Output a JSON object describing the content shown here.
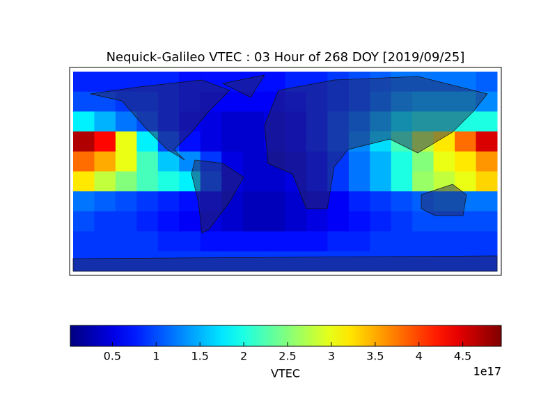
{
  "chart_data": {
    "type": "heatmap",
    "title": "Nequick-Galileo VTEC : 03 Hour of 268 DOY [2019/09/25]",
    "z": [
      [
        0.8,
        0.8,
        0.8,
        0.8,
        0.8,
        0.7,
        0.7,
        0.7,
        0.7,
        0.7,
        0.8,
        0.8,
        0.9,
        1.0,
        1.1,
        1.2,
        1.2,
        1.2,
        1.2,
        1.1
      ],
      [
        1.0,
        1.0,
        0.9,
        0.9,
        0.8,
        0.7,
        0.6,
        0.6,
        0.6,
        0.6,
        0.7,
        0.8,
        0.9,
        1.0,
        1.2,
        1.4,
        1.5,
        1.5,
        1.5,
        1.3
      ],
      [
        1.8,
        1.5,
        1.2,
        1.0,
        0.8,
        0.6,
        0.5,
        0.4,
        0.4,
        0.5,
        0.6,
        0.8,
        1.0,
        1.2,
        1.5,
        1.8,
        2.0,
        2.0,
        2.0,
        2.0
      ],
      [
        4.7,
        4.3,
        3.0,
        1.8,
        1.0,
        0.7,
        0.5,
        0.4,
        0.4,
        0.5,
        0.6,
        0.8,
        1.0,
        1.3,
        1.7,
        2.2,
        2.8,
        3.2,
        3.8,
        4.5
      ],
      [
        3.8,
        3.5,
        3.0,
        2.2,
        1.6,
        1.3,
        0.9,
        0.5,
        0.4,
        0.4,
        0.5,
        0.7,
        0.9,
        1.2,
        1.5,
        2.0,
        2.5,
        3.0,
        3.2,
        3.6
      ],
      [
        3.2,
        2.8,
        2.5,
        2.2,
        2.0,
        1.8,
        1.0,
        0.5,
        0.4,
        0.4,
        0.5,
        0.7,
        0.9,
        1.2,
        1.5,
        2.0,
        2.6,
        2.8,
        3.0,
        3.3
      ],
      [
        1.2,
        1.1,
        1.0,
        0.9,
        0.8,
        0.7,
        0.6,
        0.4,
        0.3,
        0.3,
        0.4,
        0.5,
        0.6,
        0.8,
        0.9,
        1.0,
        1.1,
        1.2,
        1.2,
        1.2
      ],
      [
        1.0,
        0.9,
        0.9,
        0.8,
        0.7,
        0.6,
        0.5,
        0.4,
        0.3,
        0.3,
        0.4,
        0.5,
        0.6,
        0.7,
        0.8,
        0.9,
        1.0,
        1.0,
        1.0,
        1.0
      ],
      [
        0.9,
        0.9,
        0.9,
        0.9,
        0.8,
        0.8,
        0.7,
        0.7,
        0.7,
        0.7,
        0.7,
        0.7,
        0.8,
        0.8,
        0.9,
        0.9,
        0.9,
        0.9,
        0.9,
        0.9
      ],
      [
        0.9,
        0.9,
        0.9,
        0.9,
        0.9,
        0.9,
        0.9,
        0.9,
        0.9,
        0.9,
        0.9,
        0.9,
        0.9,
        0.9,
        0.9,
        0.9,
        0.9,
        0.9,
        0.9,
        0.9
      ]
    ],
    "zlim": [
      0.02,
      4.94
    ],
    "colormap": "jet",
    "colorbar_ticks": [
      0.5,
      1.0,
      1.5,
      2.0,
      2.5,
      3.0,
      3.5,
      4.0,
      4.5
    ],
    "colorbar_label": "VTEC",
    "colorbar_scale": "1e17"
  }
}
